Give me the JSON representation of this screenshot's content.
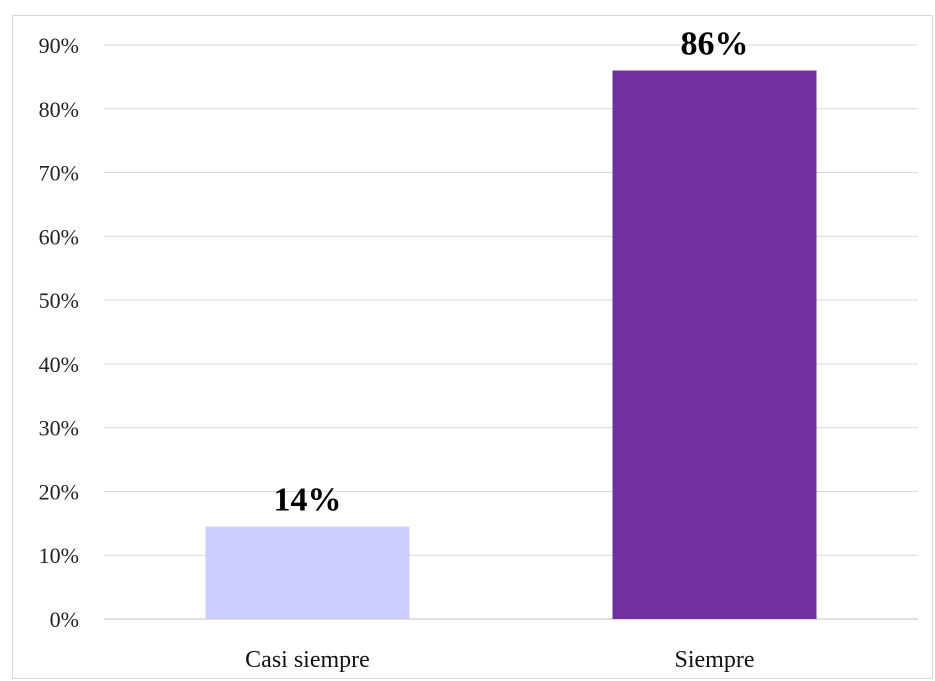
{
  "chart_data": {
    "type": "bar",
    "categories": [
      "Casi siempre",
      "Siempre"
    ],
    "values": [
      14.5,
      86
    ],
    "data_labels": [
      "14%",
      "86%"
    ],
    "colors": [
      "#ccccff",
      "#7030a0"
    ],
    "ylim": [
      0,
      90
    ],
    "y_ticks": [
      0,
      10,
      20,
      30,
      40,
      50,
      60,
      70,
      80,
      90
    ],
    "y_tick_labels": [
      "0%",
      "10%",
      "20%",
      "30%",
      "40%",
      "50%",
      "60%",
      "70%",
      "80%",
      "90%"
    ],
    "grid": true,
    "gridline_color": "#d9d9d9",
    "legend": false
  }
}
